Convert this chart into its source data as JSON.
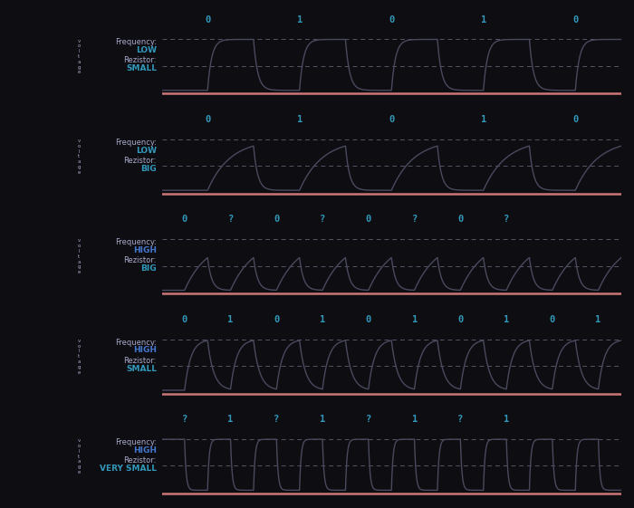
{
  "background_color": "#0d0d12",
  "signal_color": "#4a4a5e",
  "dashed_color": "#555566",
  "axis_color": "#cc7777",
  "text_color": "#aaaacc",
  "bit_color": "#3399bb",
  "time_color": "#cc7777",
  "freq_label_color": "#aaaacc",
  "resistor_label_color": "#aaaacc",
  "freq_value_color_LOW": "#3399bb",
  "freq_value_color_HIGH": "#4477cc",
  "resistor_value_color": "#3399bb",
  "voltage_text_color": "#aaaacc",
  "panels": [
    {
      "freq": "LOW",
      "resistor": "SMALL",
      "bits": [
        "0",
        "1",
        "0",
        "1",
        "0"
      ],
      "period": 0.9,
      "duty": 0.5,
      "tau_rise": 0.04,
      "tau_fall": 0.04,
      "start_high": false
    },
    {
      "freq": "LOW",
      "resistor": "BIG",
      "bits": [
        "0",
        "1",
        "0",
        "1",
        "0"
      ],
      "period": 0.9,
      "duty": 0.5,
      "tau_rise": 0.22,
      "tau_fall": 0.04,
      "start_high": false
    },
    {
      "freq": "HIGH",
      "resistor": "BIG",
      "bits": [
        "0",
        "?",
        "0",
        "?",
        "0",
        "?",
        "0",
        "?"
      ],
      "period": 0.45,
      "duty": 0.5,
      "tau_rise": 0.22,
      "tau_fall": 0.04,
      "start_high": false
    },
    {
      "freq": "HIGH",
      "resistor": "SMALL",
      "bits": [
        "0",
        "1",
        "0",
        "1",
        "0",
        "1",
        "0",
        "1",
        "0",
        "1"
      ],
      "period": 0.45,
      "duty": 0.5,
      "tau_rise": 0.06,
      "tau_fall": 0.06,
      "start_high": false
    },
    {
      "freq": "HIGH",
      "resistor": "VERY SMALL",
      "bits": [
        "?",
        "1",
        "?",
        "1",
        "?",
        "1",
        "?",
        "1"
      ],
      "period": 0.45,
      "duty": 0.5,
      "tau_rise": 0.015,
      "tau_fall": 0.015,
      "start_high": true
    }
  ]
}
